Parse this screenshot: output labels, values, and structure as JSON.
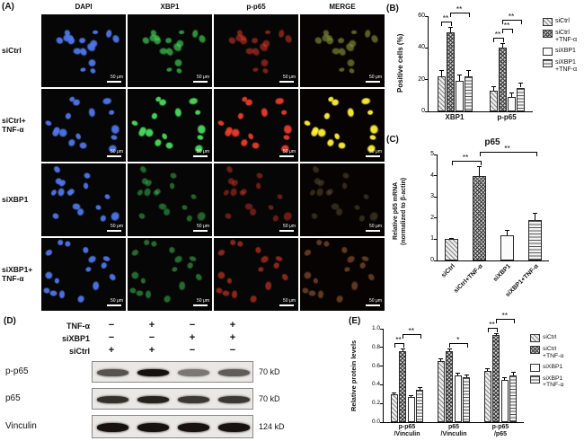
{
  "panel_a": {
    "label": "(A)",
    "columns": [
      "DAPI",
      "XBP1",
      "p-p65",
      "MERGE"
    ],
    "rows": [
      "siCtrl",
      "siCtrl+\nTNF-α",
      "siXBP1",
      "siXBP1+\nTNF-α"
    ],
    "scale_bar": "50 μm"
  },
  "legend": [
    "siCtrl",
    "siCtrl\n+TNF-α",
    "siXBP1",
    "siXBP1\n+TNF-α"
  ],
  "panel_b": {
    "label": "(B)"
  },
  "panel_c": {
    "label": "(C)",
    "title": "p65",
    "ylabel_lines": [
      "Relative p65 mRNA",
      "(normalized to β-actin)"
    ]
  },
  "panel_d": {
    "label": "(D)",
    "treatments": [
      {
        "label": "TNF-α",
        "signs": [
          "−",
          "+",
          "−",
          "+"
        ]
      },
      {
        "label": "siXBP1",
        "signs": [
          "−",
          "−",
          "+",
          "+"
        ]
      },
      {
        "label": "siCtrl",
        "signs": [
          "+",
          "+",
          "−",
          "−"
        ]
      }
    ],
    "blots": [
      {
        "label": "p-p65",
        "size": "70 kD",
        "band_intensities": [
          0.55,
          1.0,
          0.32,
          0.5
        ]
      },
      {
        "label": "p65",
        "size": "70 kD",
        "band_intensities": [
          0.8,
          0.9,
          0.75,
          0.75
        ]
      },
      {
        "label": "Vinculin",
        "size": "124 kD",
        "band_intensities": [
          1.0,
          1.0,
          1.0,
          1.0
        ]
      }
    ]
  },
  "panel_e": {
    "label": "(E)"
  },
  "chart_data": [
    {
      "id": "B",
      "type": "bar",
      "ylabel": "Positive cells (%)",
      "ylim": [
        0,
        60
      ],
      "yticks": [
        "0",
        "20",
        "40",
        "60"
      ],
      "categories": [
        "XBP1",
        "p-p65"
      ],
      "series": [
        {
          "name": "siCtrl",
          "values": [
            22,
            13
          ],
          "errors": [
            4,
            3
          ]
        },
        {
          "name": "siCtrl\n+TNF-α",
          "values": [
            50,
            40
          ],
          "errors": [
            3,
            3
          ]
        },
        {
          "name": "siXBP1",
          "values": [
            19,
            9
          ],
          "errors": [
            4,
            3
          ]
        },
        {
          "name": "siXBP1\n+TNF-α",
          "values": [
            22,
            15
          ],
          "errors": [
            4,
            3
          ]
        }
      ],
      "legend_position": "right",
      "sig": [
        {
          "from_bar": [
            0,
            0
          ],
          "to_bar": [
            0,
            1
          ],
          "label": "**",
          "level": 1
        },
        {
          "from_bar": [
            0,
            1
          ],
          "to_bar": [
            0,
            3
          ],
          "label": "**",
          "level": 2
        },
        {
          "from_bar": [
            1,
            0
          ],
          "to_bar": [
            1,
            1
          ],
          "label": "**",
          "level": 1
        },
        {
          "from_bar": [
            1,
            1
          ],
          "to_bar": [
            1,
            2
          ],
          "label": "**",
          "level": 2
        },
        {
          "from_bar": [
            1,
            1
          ],
          "to_bar": [
            1,
            3
          ],
          "label": "**",
          "level": 3
        }
      ]
    },
    {
      "id": "C",
      "type": "bar",
      "title": "p65",
      "ylabel": "Relative p65 mRNA (normalized to β-actin)",
      "ylim": [
        0,
        5
      ],
      "yticks": [
        "0",
        "1",
        "2",
        "3",
        "4",
        "5"
      ],
      "categories": [
        "siCtrl",
        "siCtrl+TNF-α",
        "siXBP1",
        "siXBP1+TNF-α"
      ],
      "pattern_by": "category",
      "rotate_xlabels": true,
      "series": [
        {
          "name": "Relative p65 mRNA",
          "values": [
            1.0,
            4.0,
            1.2,
            1.9
          ],
          "errors": [
            0.05,
            0.45,
            0.25,
            0.35
          ]
        }
      ],
      "sig": [
        {
          "from_bar": [
            0,
            0
          ],
          "to_bar": [
            1,
            0
          ],
          "label": "**",
          "level": 1
        },
        {
          "from_bar": [
            1,
            0
          ],
          "to_bar": [
            3,
            0
          ],
          "label": "**",
          "level": 2
        }
      ]
    },
    {
      "id": "E",
      "type": "bar",
      "ylabel": "Relative protein levels",
      "ylim": [
        0,
        1
      ],
      "yticks": [
        "0.0",
        "0.2",
        "0.4",
        "0.6",
        "0.8",
        "1.0"
      ],
      "categories": [
        "p-p65\n/Vinculin",
        "p65\n/Vinculin",
        "p-p65\n/p65"
      ],
      "series": [
        {
          "name": "siCtrl",
          "values": [
            0.3,
            0.65,
            0.55
          ],
          "errors": [
            0.02,
            0.03,
            0.03
          ]
        },
        {
          "name": "siCtrl\n+TNF-α",
          "values": [
            0.76,
            0.76,
            0.93
          ],
          "errors": [
            0.03,
            0.03,
            0.02
          ]
        },
        {
          "name": "siXBP1",
          "values": [
            0.27,
            0.5,
            0.45
          ],
          "errors": [
            0.02,
            0.03,
            0.03
          ]
        },
        {
          "name": "siXBP1\n+TNF-α",
          "values": [
            0.35,
            0.48,
            0.5
          ],
          "errors": [
            0.03,
            0.03,
            0.04
          ]
        }
      ],
      "legend_position": "right",
      "sig": [
        {
          "from_bar": [
            0,
            0
          ],
          "to_bar": [
            0,
            1
          ],
          "label": "**",
          "level": 1
        },
        {
          "from_bar": [
            0,
            1
          ],
          "to_bar": [
            0,
            3
          ],
          "label": "**",
          "level": 2
        },
        {
          "from_bar": [
            1,
            1
          ],
          "to_bar": [
            1,
            3
          ],
          "label": "*",
          "level": 1
        },
        {
          "from_bar": [
            2,
            0
          ],
          "to_bar": [
            2,
            1
          ],
          "label": "**",
          "level": 1
        },
        {
          "from_bar": [
            2,
            1
          ],
          "to_bar": [
            2,
            3
          ],
          "label": "**",
          "level": 2
        }
      ]
    }
  ],
  "microscopy": {
    "dapi_intensity": [
      0.95,
      0.95,
      0.95,
      0.95
    ],
    "green_intensity": [
      0.55,
      1.0,
      0.28,
      0.32
    ],
    "red_intensity": [
      0.35,
      0.95,
      0.25,
      0.45
    ]
  }
}
